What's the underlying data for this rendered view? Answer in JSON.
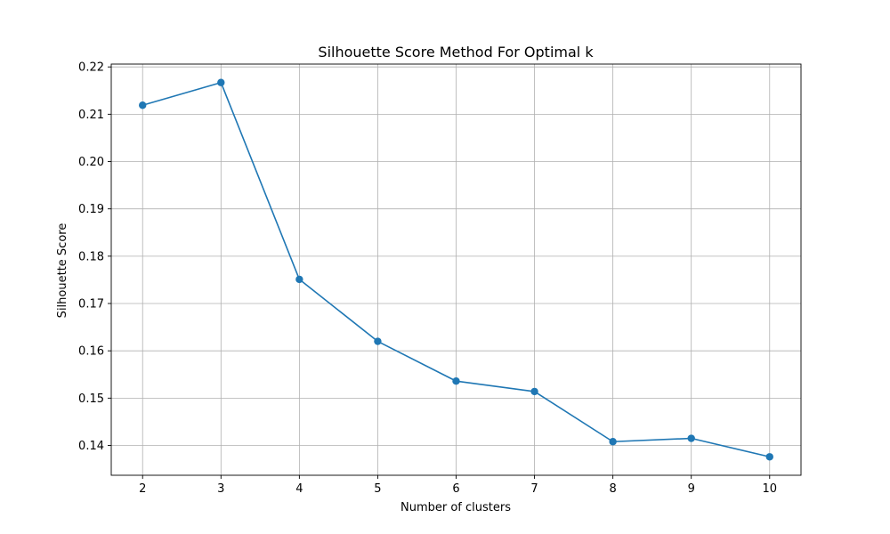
{
  "chart_data": {
    "type": "line",
    "title": "Silhouette Score Method For Optimal k",
    "xlabel": "Number of clusters",
    "ylabel": "Silhouette Score",
    "x": [
      2,
      3,
      4,
      5,
      6,
      7,
      8,
      9,
      10
    ],
    "series": [
      {
        "values": [
          0.2119,
          0.2167,
          0.1751,
          0.162,
          0.1536,
          0.1514,
          0.1408,
          0.1415,
          0.1376
        ],
        "color": "#1f77b4",
        "marker": "circle"
      }
    ],
    "xlim": [
      1.6,
      10.4
    ],
    "ylim": [
      0.1337,
      0.2206
    ],
    "xticks": [
      2,
      3,
      4,
      5,
      6,
      7,
      8,
      9,
      10
    ],
    "yticks": [
      0.14,
      0.15,
      0.16,
      0.17,
      0.18,
      0.19,
      0.2,
      0.21,
      0.22
    ],
    "ytick_labels": [
      "0.14",
      "0.15",
      "0.16",
      "0.17",
      "0.18",
      "0.19",
      "0.20",
      "0.21",
      "0.22"
    ],
    "grid": true,
    "grid_color": "#b0b0b0"
  }
}
